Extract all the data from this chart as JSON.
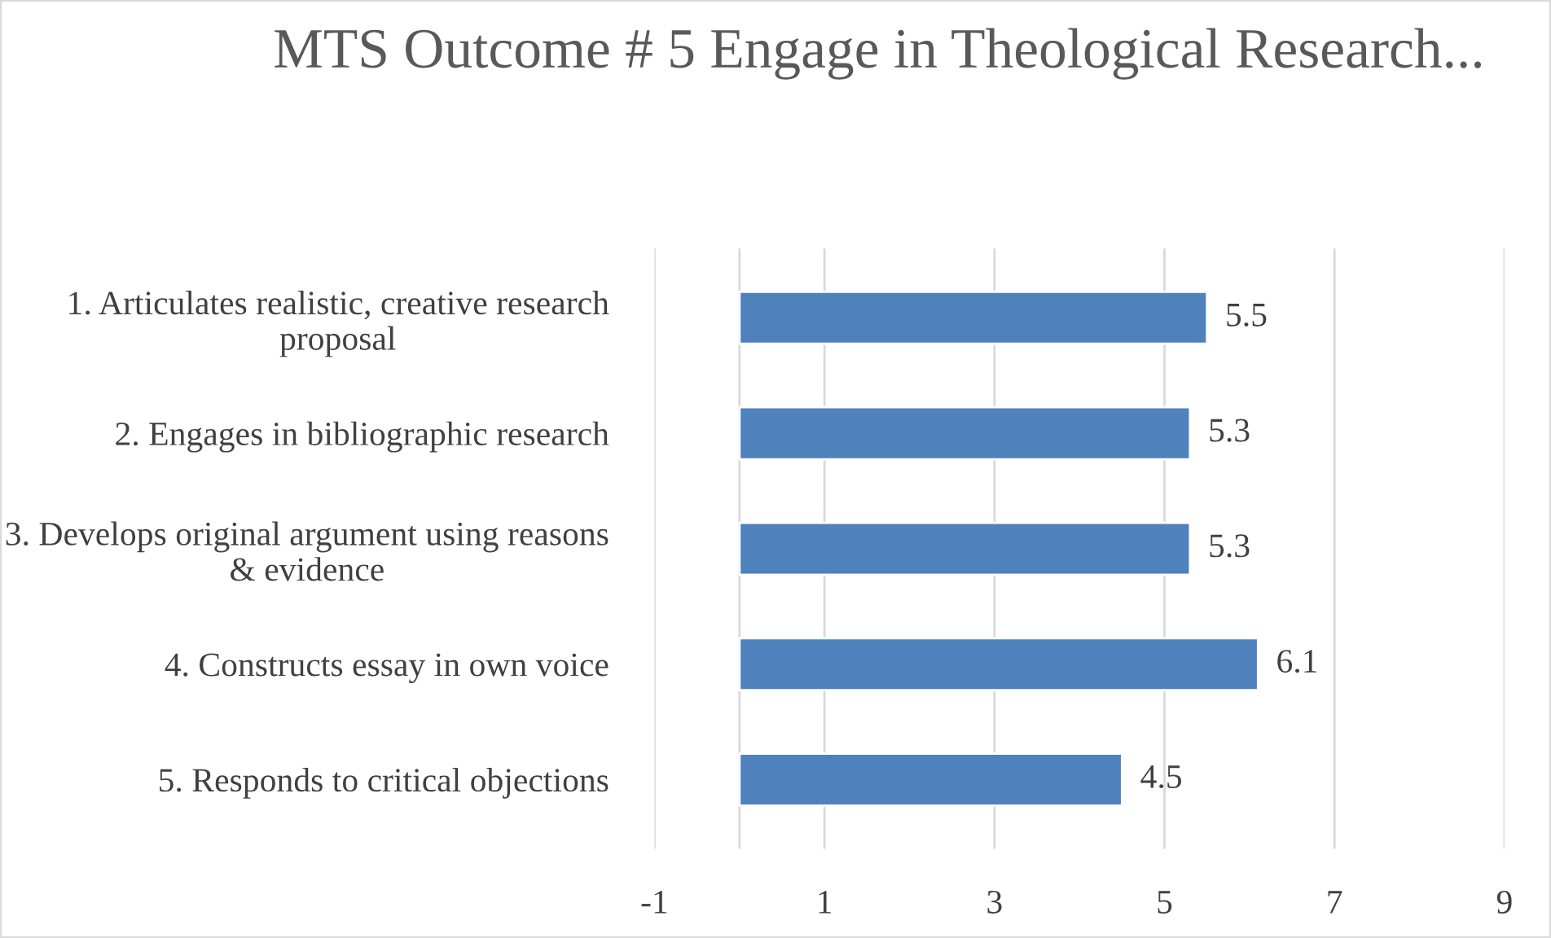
{
  "chart_data": {
    "type": "bar",
    "orientation": "horizontal",
    "title": "MTS Outcome # 5 Engage in Theological Research...",
    "categories": [
      "1. Articulates realistic, creative research proposal",
      "2. Engages in bibliographic research",
      "3. Develops original argument using reasons & evidence",
      "4. Constructs essay in own voice",
      "5. Responds to critical objections"
    ],
    "values": [
      5.5,
      5.3,
      5.3,
      6.1,
      4.5
    ],
    "color": "#4f81bd",
    "xlim": [
      -1,
      9
    ],
    "xticks": [
      -1,
      1,
      3,
      5,
      7,
      9
    ],
    "grid": "x",
    "data_labels": true
  }
}
